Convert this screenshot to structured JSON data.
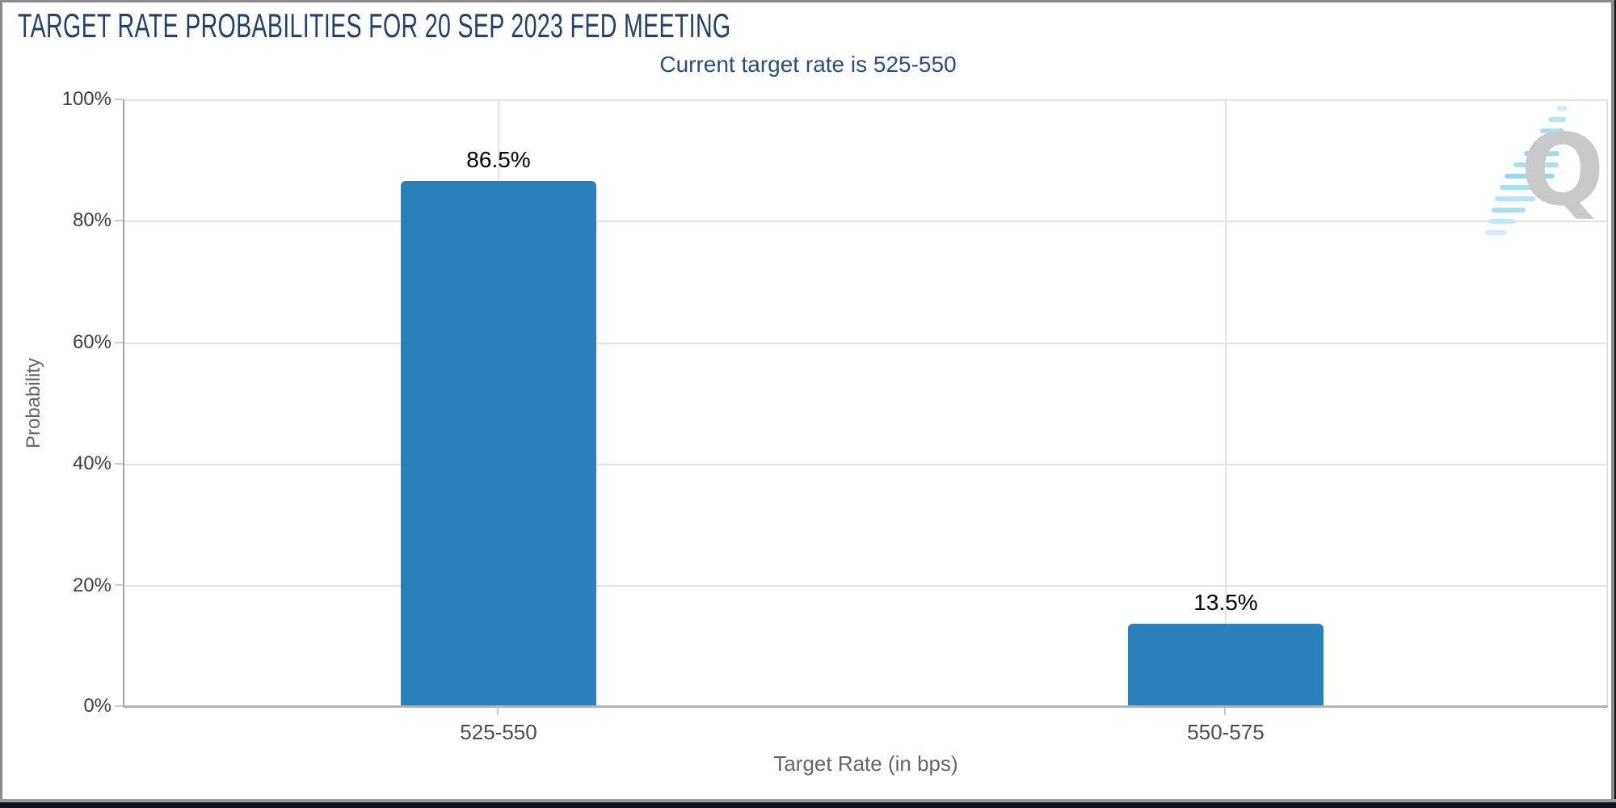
{
  "colors": {
    "title_navy": "#24406e",
    "subtitle_navy": "#2a4f7c",
    "bar_blue": "#2a80b9",
    "gridline_gray": "#e2e2e2",
    "axis_gray": "#b3b3b3"
  },
  "logo": {
    "letter": "Q",
    "description": "gray Q watermark with light-blue dashed swoosh"
  },
  "chart_data": {
    "type": "bar",
    "title": "TARGET RATE PROBABILITIES FOR 20 SEP 2023 FED MEETING",
    "subtitle": "Current target rate is 525-550",
    "categories": [
      "525-550",
      "550-575"
    ],
    "values": [
      86.5,
      13.5
    ],
    "value_labels": [
      "86.5%",
      "13.5%"
    ],
    "xlabel": "Target Rate (in bps)",
    "ylabel": "Probability",
    "yticks": [
      "100%",
      "80%",
      "60%",
      "40%",
      "20%",
      "0%"
    ],
    "ylim": [
      0,
      100
    ],
    "grid": true,
    "legend": false,
    "bar_color": "#2a80b9"
  }
}
